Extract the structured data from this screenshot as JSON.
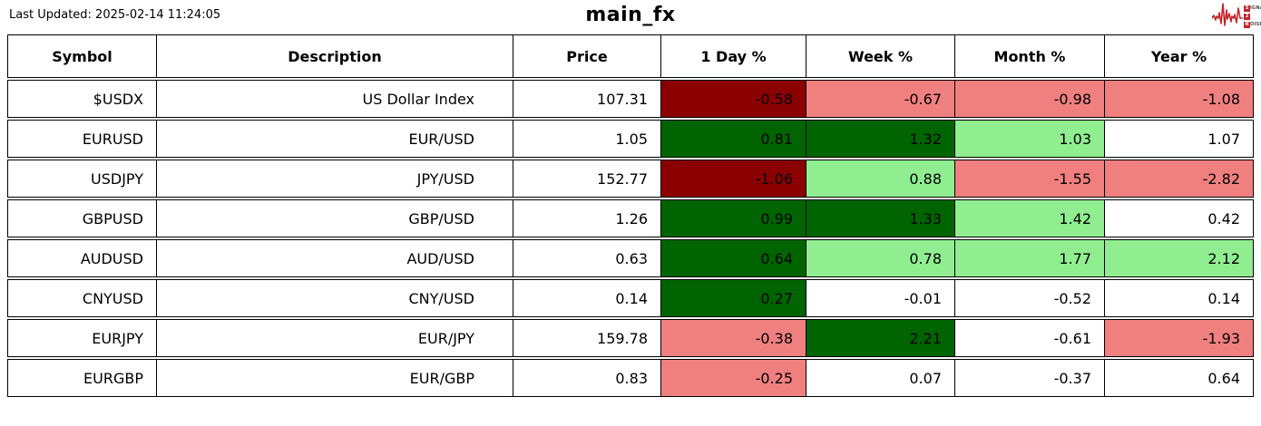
{
  "meta": {
    "last_updated": "Last Updated: 2025-02-14 11:24:05",
    "title": "main_fx"
  },
  "logo": {
    "name": "signal-2-noise",
    "color": "#c2262c",
    "line1_initial": "S",
    "line1_rest": "IGNAL",
    "line2_initial": "2",
    "line2_rest": "",
    "line3_initial": "N",
    "line3_rest": "OISE"
  },
  "colors": {
    "strong_down": "#8b0000",
    "down": "#f08080",
    "strong_up": "#006400",
    "up": "#90ee90",
    "neutral": "#ffffff"
  },
  "table": {
    "headers": [
      "Symbol",
      "Description",
      "Price",
      "1 Day %",
      "Week %",
      "Month %",
      "Year %"
    ],
    "rows": [
      {
        "symbol": "$USDX",
        "description": "US Dollar Index",
        "price": "107.31",
        "changes": [
          {
            "value": "-0.58",
            "level": "strong_down"
          },
          {
            "value": "-0.67",
            "level": "down"
          },
          {
            "value": "-0.98",
            "level": "down"
          },
          {
            "value": "-1.08",
            "level": "down"
          }
        ]
      },
      {
        "symbol": "EURUSD",
        "description": "EUR/USD",
        "price": "1.05",
        "changes": [
          {
            "value": "0.81",
            "level": "strong_up"
          },
          {
            "value": "1.32",
            "level": "strong_up"
          },
          {
            "value": "1.03",
            "level": "up"
          },
          {
            "value": "1.07",
            "level": "neutral"
          }
        ]
      },
      {
        "symbol": "USDJPY",
        "description": "JPY/USD",
        "price": "152.77",
        "changes": [
          {
            "value": "-1.06",
            "level": "strong_down"
          },
          {
            "value": "0.88",
            "level": "up"
          },
          {
            "value": "-1.55",
            "level": "down"
          },
          {
            "value": "-2.82",
            "level": "down"
          }
        ]
      },
      {
        "symbol": "GBPUSD",
        "description": "GBP/USD",
        "price": "1.26",
        "changes": [
          {
            "value": "0.99",
            "level": "strong_up"
          },
          {
            "value": "1.33",
            "level": "strong_up"
          },
          {
            "value": "1.42",
            "level": "up"
          },
          {
            "value": "0.42",
            "level": "neutral"
          }
        ]
      },
      {
        "symbol": "AUDUSD",
        "description": "AUD/USD",
        "price": "0.63",
        "changes": [
          {
            "value": "0.64",
            "level": "strong_up"
          },
          {
            "value": "0.78",
            "level": "up"
          },
          {
            "value": "1.77",
            "level": "up"
          },
          {
            "value": "2.12",
            "level": "up"
          }
        ]
      },
      {
        "symbol": "CNYUSD",
        "description": "CNY/USD",
        "price": "0.14",
        "changes": [
          {
            "value": "0.27",
            "level": "strong_up"
          },
          {
            "value": "-0.01",
            "level": "neutral"
          },
          {
            "value": "-0.52",
            "level": "neutral"
          },
          {
            "value": "0.14",
            "level": "neutral"
          }
        ]
      },
      {
        "symbol": "EURJPY",
        "description": "EUR/JPY",
        "price": "159.78",
        "changes": [
          {
            "value": "-0.38",
            "level": "down"
          },
          {
            "value": "2.21",
            "level": "strong_up"
          },
          {
            "value": "-0.61",
            "level": "neutral"
          },
          {
            "value": "-1.93",
            "level": "down"
          }
        ]
      },
      {
        "symbol": "EURGBP",
        "description": "EUR/GBP",
        "price": "0.83",
        "changes": [
          {
            "value": "-0.25",
            "level": "down"
          },
          {
            "value": "0.07",
            "level": "neutral"
          },
          {
            "value": "-0.37",
            "level": "neutral"
          },
          {
            "value": "0.64",
            "level": "neutral"
          }
        ]
      }
    ]
  },
  "chart_data": {
    "type": "table",
    "title": "main_fx",
    "columns": [
      "Symbol",
      "Description",
      "Price",
      "1 Day %",
      "Week %",
      "Month %",
      "Year %"
    ],
    "rows": [
      [
        "$USDX",
        "US Dollar Index",
        107.31,
        -0.58,
        -0.67,
        -0.98,
        -1.08
      ],
      [
        "EURUSD",
        "EUR/USD",
        1.05,
        0.81,
        1.32,
        1.03,
        1.07
      ],
      [
        "USDJPY",
        "JPY/USD",
        152.77,
        -1.06,
        0.88,
        -1.55,
        -2.82
      ],
      [
        "GBPUSD",
        "GBP/USD",
        1.26,
        0.99,
        1.33,
        1.42,
        0.42
      ],
      [
        "AUDUSD",
        "AUD/USD",
        0.63,
        0.64,
        0.78,
        1.77,
        2.12
      ],
      [
        "CNYUSD",
        "CNY/USD",
        0.14,
        0.27,
        -0.01,
        -0.52,
        0.14
      ],
      [
        "EURJPY",
        "EUR/JPY",
        159.78,
        -0.38,
        2.21,
        -0.61,
        -1.93
      ],
      [
        "EURGBP",
        "EUR/GBP",
        0.83,
        -0.25,
        0.07,
        -0.37,
        0.64
      ]
    ]
  }
}
